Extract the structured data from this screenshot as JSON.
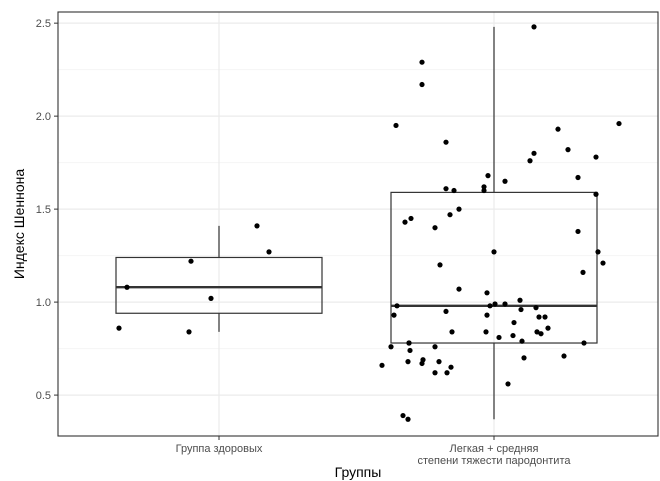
{
  "chart_data": {
    "type": "boxplot",
    "title": "",
    "xlabel": "Группы",
    "ylabel": "Индекс Шеннона",
    "ylim": [
      0.28,
      2.56
    ],
    "yticks": [
      "0.5",
      "1.0",
      "1.5",
      "2.0",
      "2.5"
    ],
    "ytick_values": [
      0.5,
      1.0,
      1.5,
      2.0,
      2.5
    ],
    "grid": true,
    "legend": "none",
    "categories": [
      [
        "Группа здоровых"
      ],
      [
        "Легкая + средняя",
        "степени тяжести пародонтита"
      ]
    ],
    "boxes": [
      {
        "category_index": 0,
        "min": 0.84,
        "q1": 0.94,
        "median": 1.08,
        "q3": 1.24,
        "max": 1.41
      },
      {
        "category_index": 1,
        "min": 0.37,
        "q1": 0.78,
        "median": 0.98,
        "q3": 1.59,
        "max": 2.48
      }
    ],
    "points": [
      {
        "group": 0,
        "values": [
          0.86,
          1.08,
          1.22,
          0.84,
          1.02,
          1.41,
          1.27
        ]
      },
      {
        "group": 1,
        "values": [
          2.48,
          2.29,
          2.17,
          1.95,
          1.96,
          1.93,
          1.86,
          1.82,
          1.8,
          1.78,
          1.76,
          1.68,
          1.67,
          1.65,
          1.62,
          1.61,
          1.6,
          1.6,
          1.58,
          1.5,
          1.47,
          1.45,
          1.43,
          1.4,
          1.38,
          1.27,
          1.27,
          1.21,
          1.2,
          1.16,
          1.07,
          1.05,
          1.01,
          0.99,
          0.99,
          0.98,
          0.98,
          0.97,
          0.96,
          0.95,
          0.93,
          0.93,
          0.92,
          0.92,
          0.89,
          0.86,
          0.84,
          0.84,
          0.84,
          0.83,
          0.82,
          0.81,
          0.79,
          0.78,
          0.78,
          0.78,
          0.76,
          0.76,
          0.74,
          0.71,
          0.7,
          0.69,
          0.68,
          0.68,
          0.67,
          0.66,
          0.65,
          0.62,
          0.62,
          0.56,
          0.39,
          0.37
        ]
      }
    ]
  },
  "colors": {
    "background": "#ffffff",
    "panel_border": "#333333",
    "grid_major": "#ebebeb",
    "grid_minor": "#f5f5f5",
    "box": "#333333",
    "point": "#000000"
  }
}
